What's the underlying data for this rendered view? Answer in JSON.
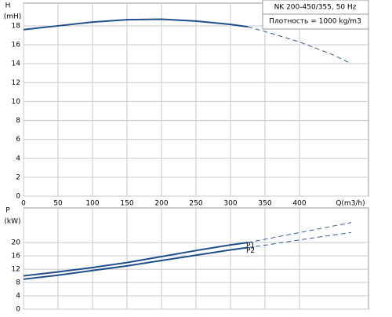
{
  "chart_data": [
    {
      "type": "line",
      "y_label_lines": [
        "H",
        "(mH)"
      ],
      "xlabel": "Q(m3/h)",
      "legend_lines": [
        "NK 200-450/355, 50 Hz",
        "Плотность = 1000 kg/m3"
      ],
      "x": [
        0,
        50,
        100,
        150,
        200,
        250,
        300,
        325,
        350,
        400,
        450,
        475
      ],
      "series": [
        {
          "color": "#1f4e8c",
          "dash": false,
          "values": [
            17.6,
            18.0,
            18.4,
            18.65,
            18.7,
            18.5,
            18.15,
            17.9,
            null,
            null,
            null,
            null
          ]
        },
        {
          "color": "#2f5f9e",
          "dash": true,
          "values": [
            null,
            null,
            null,
            null,
            null,
            null,
            null,
            17.9,
            17.4,
            16.3,
            14.9,
            14.0
          ]
        }
      ],
      "xlim": [
        0,
        500
      ],
      "xticks": [
        0,
        50,
        100,
        150,
        200,
        250,
        300,
        350,
        400
      ],
      "ylim": [
        0,
        20.4
      ],
      "yticks": [
        0,
        2,
        4,
        6,
        8,
        10,
        12,
        14,
        16,
        18
      ],
      "grid": true,
      "show_xtick_labels": true
    },
    {
      "type": "line",
      "y_label_lines": [
        "P",
        "(kW)"
      ],
      "x": [
        0,
        50,
        100,
        150,
        200,
        250,
        300,
        325,
        350,
        400,
        450,
        475
      ],
      "series": [
        {
          "name": "P1",
          "color": "#1f4e8c",
          "dash": false,
          "values": [
            10.0,
            11.2,
            12.5,
            14.0,
            15.8,
            17.6,
            19.3,
            20.0,
            null,
            null,
            null,
            null
          ]
        },
        {
          "color": "#2f5f9e",
          "dash": true,
          "values": [
            null,
            null,
            null,
            null,
            null,
            null,
            null,
            20.0,
            21.0,
            23.0,
            25.0,
            26.0
          ]
        },
        {
          "name": "P2",
          "color": "#1f4e8c",
          "dash": false,
          "values": [
            9.0,
            10.2,
            11.6,
            13.0,
            14.6,
            16.2,
            17.8,
            18.5,
            null,
            null,
            null,
            null
          ]
        },
        {
          "color": "#2f5f9e",
          "dash": true,
          "values": [
            null,
            null,
            null,
            null,
            null,
            null,
            null,
            18.5,
            19.2,
            20.8,
            22.3,
            23.0
          ]
        }
      ],
      "xlim": [
        0,
        500
      ],
      "xticks": [
        0,
        50,
        100,
        150,
        200,
        250,
        300,
        350,
        400
      ],
      "ylim": [
        0,
        30.4
      ],
      "yticks": [
        0,
        4,
        8,
        12,
        16,
        20
      ],
      "grid": true,
      "show_xtick_labels": false
    }
  ]
}
